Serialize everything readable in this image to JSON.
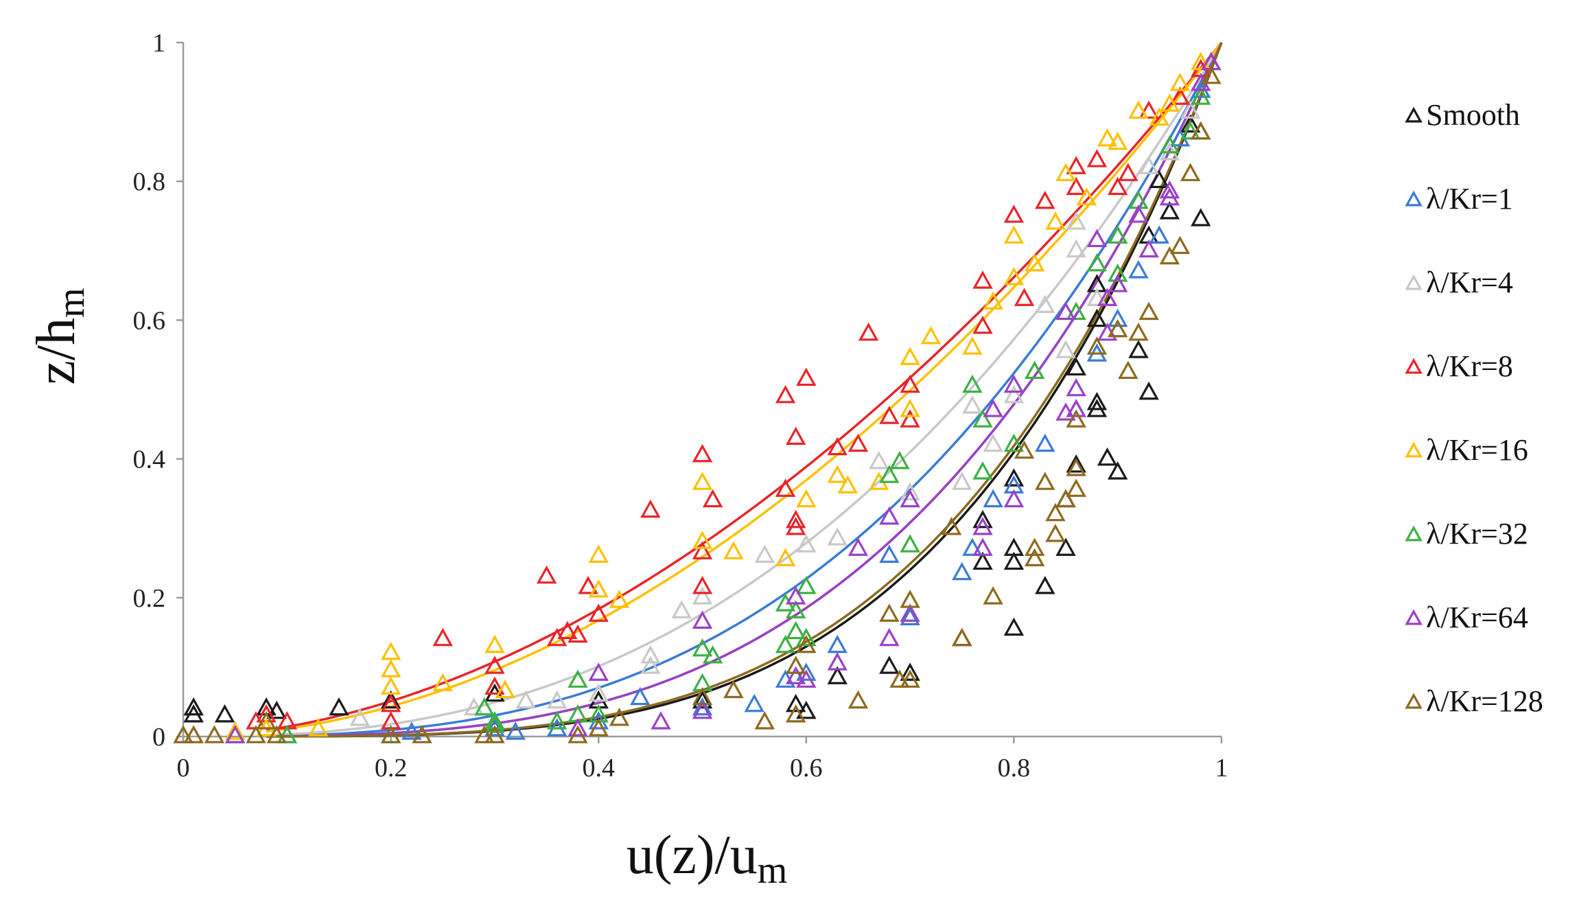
{
  "chart_data": {
    "type": "scatter",
    "xlabel": "u(z)/u",
    "xlabel_sub": "m",
    "ylabel": "z/h",
    "ylabel_sub": "m",
    "xlim": [
      0,
      1
    ],
    "ylim": [
      0,
      1
    ],
    "x_ticks": [
      "0",
      "0.2",
      "0.4",
      "0.6",
      "0.8",
      "1"
    ],
    "y_ticks": [
      "0",
      "0.2",
      "0.4",
      "0.6",
      "0.8",
      "1"
    ],
    "grid": false,
    "legend_position": "right",
    "marker": "open-triangle",
    "series": [
      {
        "name": "Smooth",
        "color": "#1a1a1a",
        "fit_exponent": 4.0,
        "points": [
          [
            0.01,
            0.04
          ],
          [
            0.01,
            0.03
          ],
          [
            0.04,
            0.03
          ],
          [
            0.08,
            0.04
          ],
          [
            0.09,
            0.035
          ],
          [
            0.15,
            0.04
          ],
          [
            0.2,
            0.05
          ],
          [
            0.3,
            0.06
          ],
          [
            0.4,
            0.05
          ],
          [
            0.5,
            0.05
          ],
          [
            0.59,
            0.045
          ],
          [
            0.6,
            0.035
          ],
          [
            0.63,
            0.085
          ],
          [
            0.68,
            0.1
          ],
          [
            0.7,
            0.09
          ],
          [
            0.75,
            0.14
          ],
          [
            0.77,
            0.25
          ],
          [
            0.77,
            0.31
          ],
          [
            0.8,
            0.155
          ],
          [
            0.8,
            0.25
          ],
          [
            0.8,
            0.27
          ],
          [
            0.8,
            0.37
          ],
          [
            0.83,
            0.215
          ],
          [
            0.85,
            0.27
          ],
          [
            0.85,
            0.34
          ],
          [
            0.86,
            0.39
          ],
          [
            0.86,
            0.53
          ],
          [
            0.88,
            0.47
          ],
          [
            0.88,
            0.48
          ],
          [
            0.88,
            0.6
          ],
          [
            0.88,
            0.65
          ],
          [
            0.89,
            0.4
          ],
          [
            0.9,
            0.38
          ],
          [
            0.92,
            0.555
          ],
          [
            0.93,
            0.495
          ],
          [
            0.93,
            0.72
          ],
          [
            0.94,
            0.8
          ],
          [
            0.95,
            0.755
          ],
          [
            0.97,
            0.88
          ],
          [
            0.98,
            0.745
          ],
          [
            0.98,
            0.87
          ],
          [
            0.99,
            0.97
          ]
        ]
      },
      {
        "name": "λ/Kr=1",
        "color": "#3a7bd5",
        "fit_exponent": 2.9,
        "points": [
          [
            0.0,
            0.0
          ],
          [
            0.05,
            0.0
          ],
          [
            0.1,
            0.0
          ],
          [
            0.2,
            0.0
          ],
          [
            0.22,
            0.005
          ],
          [
            0.3,
            0.01
          ],
          [
            0.32,
            0.005
          ],
          [
            0.36,
            0.01
          ],
          [
            0.4,
            0.02
          ],
          [
            0.44,
            0.055
          ],
          [
            0.5,
            0.04
          ],
          [
            0.55,
            0.045
          ],
          [
            0.58,
            0.08
          ],
          [
            0.6,
            0.09
          ],
          [
            0.63,
            0.13
          ],
          [
            0.68,
            0.26
          ],
          [
            0.7,
            0.17
          ],
          [
            0.75,
            0.235
          ],
          [
            0.76,
            0.27
          ],
          [
            0.78,
            0.34
          ],
          [
            0.8,
            0.36
          ],
          [
            0.83,
            0.42
          ],
          [
            0.86,
            0.47
          ],
          [
            0.88,
            0.55
          ],
          [
            0.9,
            0.6
          ],
          [
            0.92,
            0.67
          ],
          [
            0.94,
            0.72
          ],
          [
            0.96,
            0.86
          ],
          [
            0.98,
            0.93
          ]
        ]
      },
      {
        "name": "λ/Kr=4",
        "color": "#c8c8c8",
        "fit_exponent": 2.5,
        "points": [
          [
            0.0,
            0.0
          ],
          [
            0.05,
            0.0
          ],
          [
            0.08,
            0.01
          ],
          [
            0.17,
            0.025
          ],
          [
            0.28,
            0.04
          ],
          [
            0.33,
            0.05
          ],
          [
            0.36,
            0.05
          ],
          [
            0.4,
            0.06
          ],
          [
            0.45,
            0.1
          ],
          [
            0.45,
            0.115
          ],
          [
            0.48,
            0.18
          ],
          [
            0.5,
            0.2
          ],
          [
            0.56,
            0.26
          ],
          [
            0.6,
            0.275
          ],
          [
            0.63,
            0.285
          ],
          [
            0.67,
            0.395
          ],
          [
            0.7,
            0.35
          ],
          [
            0.75,
            0.365
          ],
          [
            0.76,
            0.475
          ],
          [
            0.78,
            0.42
          ],
          [
            0.8,
            0.49
          ],
          [
            0.83,
            0.62
          ],
          [
            0.85,
            0.555
          ],
          [
            0.86,
            0.7
          ],
          [
            0.86,
            0.74
          ],
          [
            0.88,
            0.63
          ],
          [
            0.9,
            0.72
          ],
          [
            0.93,
            0.82
          ],
          [
            0.95,
            0.84
          ],
          [
            0.97,
            0.9
          ]
        ]
      },
      {
        "name": "λ/Kr=8",
        "color": "#e8252a",
        "fit_exponent": 1.85,
        "points": [
          [
            0.07,
            0.02
          ],
          [
            0.08,
            0.03
          ],
          [
            0.1,
            0.02
          ],
          [
            0.2,
            0.045
          ],
          [
            0.2,
            0.02
          ],
          [
            0.25,
            0.14
          ],
          [
            0.3,
            0.07
          ],
          [
            0.3,
            0.1
          ],
          [
            0.35,
            0.23
          ],
          [
            0.36,
            0.14
          ],
          [
            0.37,
            0.15
          ],
          [
            0.38,
            0.145
          ],
          [
            0.39,
            0.215
          ],
          [
            0.4,
            0.175
          ],
          [
            0.45,
            0.325
          ],
          [
            0.5,
            0.405
          ],
          [
            0.5,
            0.265
          ],
          [
            0.5,
            0.215
          ],
          [
            0.51,
            0.34
          ],
          [
            0.58,
            0.355
          ],
          [
            0.58,
            0.49
          ],
          [
            0.59,
            0.3
          ],
          [
            0.59,
            0.31
          ],
          [
            0.59,
            0.43
          ],
          [
            0.6,
            0.515
          ],
          [
            0.63,
            0.415
          ],
          [
            0.65,
            0.42
          ],
          [
            0.66,
            0.58
          ],
          [
            0.68,
            0.46
          ],
          [
            0.7,
            0.455
          ],
          [
            0.7,
            0.505
          ],
          [
            0.77,
            0.655
          ],
          [
            0.77,
            0.59
          ],
          [
            0.8,
            0.75
          ],
          [
            0.81,
            0.63
          ],
          [
            0.83,
            0.77
          ],
          [
            0.86,
            0.79
          ],
          [
            0.86,
            0.82
          ],
          [
            0.88,
            0.83
          ],
          [
            0.9,
            0.79
          ],
          [
            0.91,
            0.81
          ],
          [
            0.93,
            0.9
          ],
          [
            0.96,
            0.92
          ],
          [
            0.98,
            0.96
          ]
        ]
      },
      {
        "name": "λ/Kr=16",
        "color": "#ffc000",
        "fit_exponent": 1.95,
        "points": [
          [
            0.01,
            0.0
          ],
          [
            0.05,
            0.005
          ],
          [
            0.08,
            0.01
          ],
          [
            0.13,
            0.01
          ],
          [
            0.2,
            0.12
          ],
          [
            0.2,
            0.095
          ],
          [
            0.2,
            0.07
          ],
          [
            0.25,
            0.075
          ],
          [
            0.3,
            0.13
          ],
          [
            0.31,
            0.065
          ],
          [
            0.4,
            0.26
          ],
          [
            0.4,
            0.21
          ],
          [
            0.42,
            0.195
          ],
          [
            0.5,
            0.365
          ],
          [
            0.5,
            0.28
          ],
          [
            0.53,
            0.265
          ],
          [
            0.58,
            0.255
          ],
          [
            0.6,
            0.34
          ],
          [
            0.63,
            0.375
          ],
          [
            0.64,
            0.36
          ],
          [
            0.67,
            0.365
          ],
          [
            0.7,
            0.545
          ],
          [
            0.7,
            0.47
          ],
          [
            0.72,
            0.575
          ],
          [
            0.76,
            0.56
          ],
          [
            0.78,
            0.625
          ],
          [
            0.8,
            0.72
          ],
          [
            0.8,
            0.66
          ],
          [
            0.82,
            0.68
          ],
          [
            0.84,
            0.74
          ],
          [
            0.85,
            0.81
          ],
          [
            0.87,
            0.775
          ],
          [
            0.89,
            0.86
          ],
          [
            0.9,
            0.855
          ],
          [
            0.92,
            0.9
          ],
          [
            0.94,
            0.89
          ],
          [
            0.95,
            0.91
          ],
          [
            0.96,
            0.94
          ],
          [
            0.98,
            0.97
          ]
        ]
      },
      {
        "name": "λ/Kr=32",
        "color": "#3cb043",
        "fit_exponent": 3.3,
        "points": [
          [
            0.05,
            0.0
          ],
          [
            0.1,
            0.0
          ],
          [
            0.29,
            0.04
          ],
          [
            0.3,
            0.02
          ],
          [
            0.3,
            0.015
          ],
          [
            0.36,
            0.02
          ],
          [
            0.38,
            0.08
          ],
          [
            0.38,
            0.03
          ],
          [
            0.4,
            0.03
          ],
          [
            0.5,
            0.125
          ],
          [
            0.5,
            0.075
          ],
          [
            0.51,
            0.115
          ],
          [
            0.58,
            0.19
          ],
          [
            0.58,
            0.13
          ],
          [
            0.59,
            0.15
          ],
          [
            0.59,
            0.18
          ],
          [
            0.6,
            0.215
          ],
          [
            0.6,
            0.14
          ],
          [
            0.68,
            0.375
          ],
          [
            0.69,
            0.395
          ],
          [
            0.7,
            0.275
          ],
          [
            0.76,
            0.505
          ],
          [
            0.77,
            0.455
          ],
          [
            0.77,
            0.38
          ],
          [
            0.8,
            0.42
          ],
          [
            0.82,
            0.525
          ],
          [
            0.86,
            0.61
          ],
          [
            0.88,
            0.68
          ],
          [
            0.9,
            0.665
          ],
          [
            0.9,
            0.72
          ],
          [
            0.92,
            0.77
          ],
          [
            0.95,
            0.85
          ],
          [
            0.97,
            0.87
          ],
          [
            0.98,
            0.92
          ]
        ]
      },
      {
        "name": "λ/Kr=64",
        "color": "#9b40c8",
        "fit_exponent": 3.3,
        "points": [
          [
            0.05,
            0.0
          ],
          [
            0.38,
            0.01
          ],
          [
            0.4,
            0.09
          ],
          [
            0.46,
            0.02
          ],
          [
            0.5,
            0.165
          ],
          [
            0.5,
            0.035
          ],
          [
            0.59,
            0.2
          ],
          [
            0.59,
            0.085
          ],
          [
            0.6,
            0.08
          ],
          [
            0.63,
            0.105
          ],
          [
            0.65,
            0.27
          ],
          [
            0.68,
            0.14
          ],
          [
            0.68,
            0.315
          ],
          [
            0.7,
            0.34
          ],
          [
            0.7,
            0.175
          ],
          [
            0.77,
            0.27
          ],
          [
            0.77,
            0.3
          ],
          [
            0.78,
            0.47
          ],
          [
            0.8,
            0.34
          ],
          [
            0.8,
            0.505
          ],
          [
            0.85,
            0.465
          ],
          [
            0.85,
            0.61
          ],
          [
            0.86,
            0.5
          ],
          [
            0.86,
            0.47
          ],
          [
            0.88,
            0.715
          ],
          [
            0.89,
            0.58
          ],
          [
            0.89,
            0.63
          ],
          [
            0.9,
            0.65
          ],
          [
            0.92,
            0.75
          ],
          [
            0.93,
            0.7
          ],
          [
            0.95,
            0.785
          ],
          [
            0.95,
            0.775
          ],
          [
            0.98,
            0.94
          ],
          [
            0.99,
            0.97
          ]
        ]
      },
      {
        "name": "λ/Kr=128",
        "color": "#8c6a1e",
        "fit_exponent": 3.9,
        "points": [
          [
            0.0,
            0.0
          ],
          [
            0.01,
            0.0
          ],
          [
            0.03,
            0.0
          ],
          [
            0.07,
            0.0
          ],
          [
            0.08,
            0.02
          ],
          [
            0.09,
            0.0
          ],
          [
            0.2,
            0.0
          ],
          [
            0.23,
            0.0
          ],
          [
            0.29,
            0.0
          ],
          [
            0.3,
            0.0
          ],
          [
            0.38,
            0.0
          ],
          [
            0.4,
            0.01
          ],
          [
            0.42,
            0.025
          ],
          [
            0.5,
            0.055
          ],
          [
            0.53,
            0.065
          ],
          [
            0.56,
            0.02
          ],
          [
            0.59,
            0.03
          ],
          [
            0.59,
            0.1
          ],
          [
            0.6,
            0.13
          ],
          [
            0.65,
            0.05
          ],
          [
            0.68,
            0.175
          ],
          [
            0.69,
            0.08
          ],
          [
            0.7,
            0.08
          ],
          [
            0.7,
            0.195
          ],
          [
            0.74,
            0.3
          ],
          [
            0.75,
            0.14
          ],
          [
            0.78,
            0.2
          ],
          [
            0.81,
            0.41
          ],
          [
            0.82,
            0.27
          ],
          [
            0.82,
            0.255
          ],
          [
            0.83,
            0.365
          ],
          [
            0.84,
            0.29
          ],
          [
            0.84,
            0.32
          ],
          [
            0.85,
            0.34
          ],
          [
            0.86,
            0.355
          ],
          [
            0.86,
            0.385
          ],
          [
            0.86,
            0.455
          ],
          [
            0.88,
            0.56
          ],
          [
            0.9,
            0.585
          ],
          [
            0.91,
            0.525
          ],
          [
            0.92,
            0.58
          ],
          [
            0.93,
            0.61
          ],
          [
            0.95,
            0.69
          ],
          [
            0.96,
            0.705
          ],
          [
            0.97,
            0.81
          ],
          [
            0.98,
            0.87
          ],
          [
            0.99,
            0.95
          ]
        ]
      }
    ]
  }
}
